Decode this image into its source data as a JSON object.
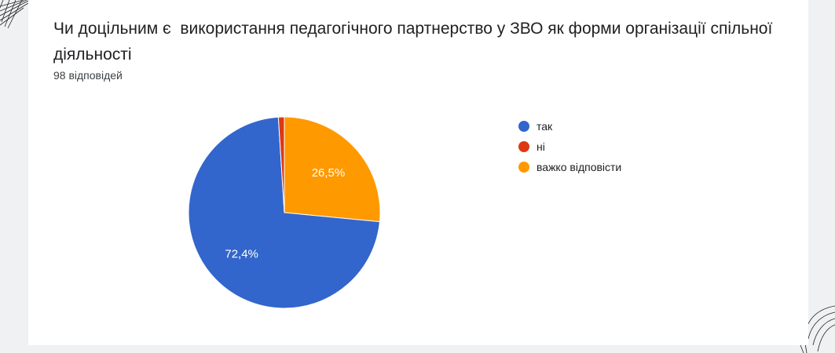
{
  "question": {
    "title": "Чи доцільним є  використання педагогічного партнерство у ЗВО як форми організації спільної діяльності",
    "responses": "98 відповідей"
  },
  "chart_data": {
    "type": "pie",
    "categories": [
      "так",
      "ні",
      "важко відповісти"
    ],
    "values": [
      72.4,
      1.0,
      26.5
    ],
    "data_labels": [
      "72,4%",
      "",
      "26,5%"
    ],
    "colors": [
      "#3366cc",
      "#dc3912",
      "#ff9900"
    ],
    "legend_position": "right",
    "start_angle_deg": 0,
    "direction": "clockwise"
  },
  "legend": {
    "items": [
      {
        "label": "так",
        "color": "#3366cc"
      },
      {
        "label": "ні",
        "color": "#dc3912"
      },
      {
        "label": "важко відповісти",
        "color": "#ff9900"
      }
    ]
  }
}
